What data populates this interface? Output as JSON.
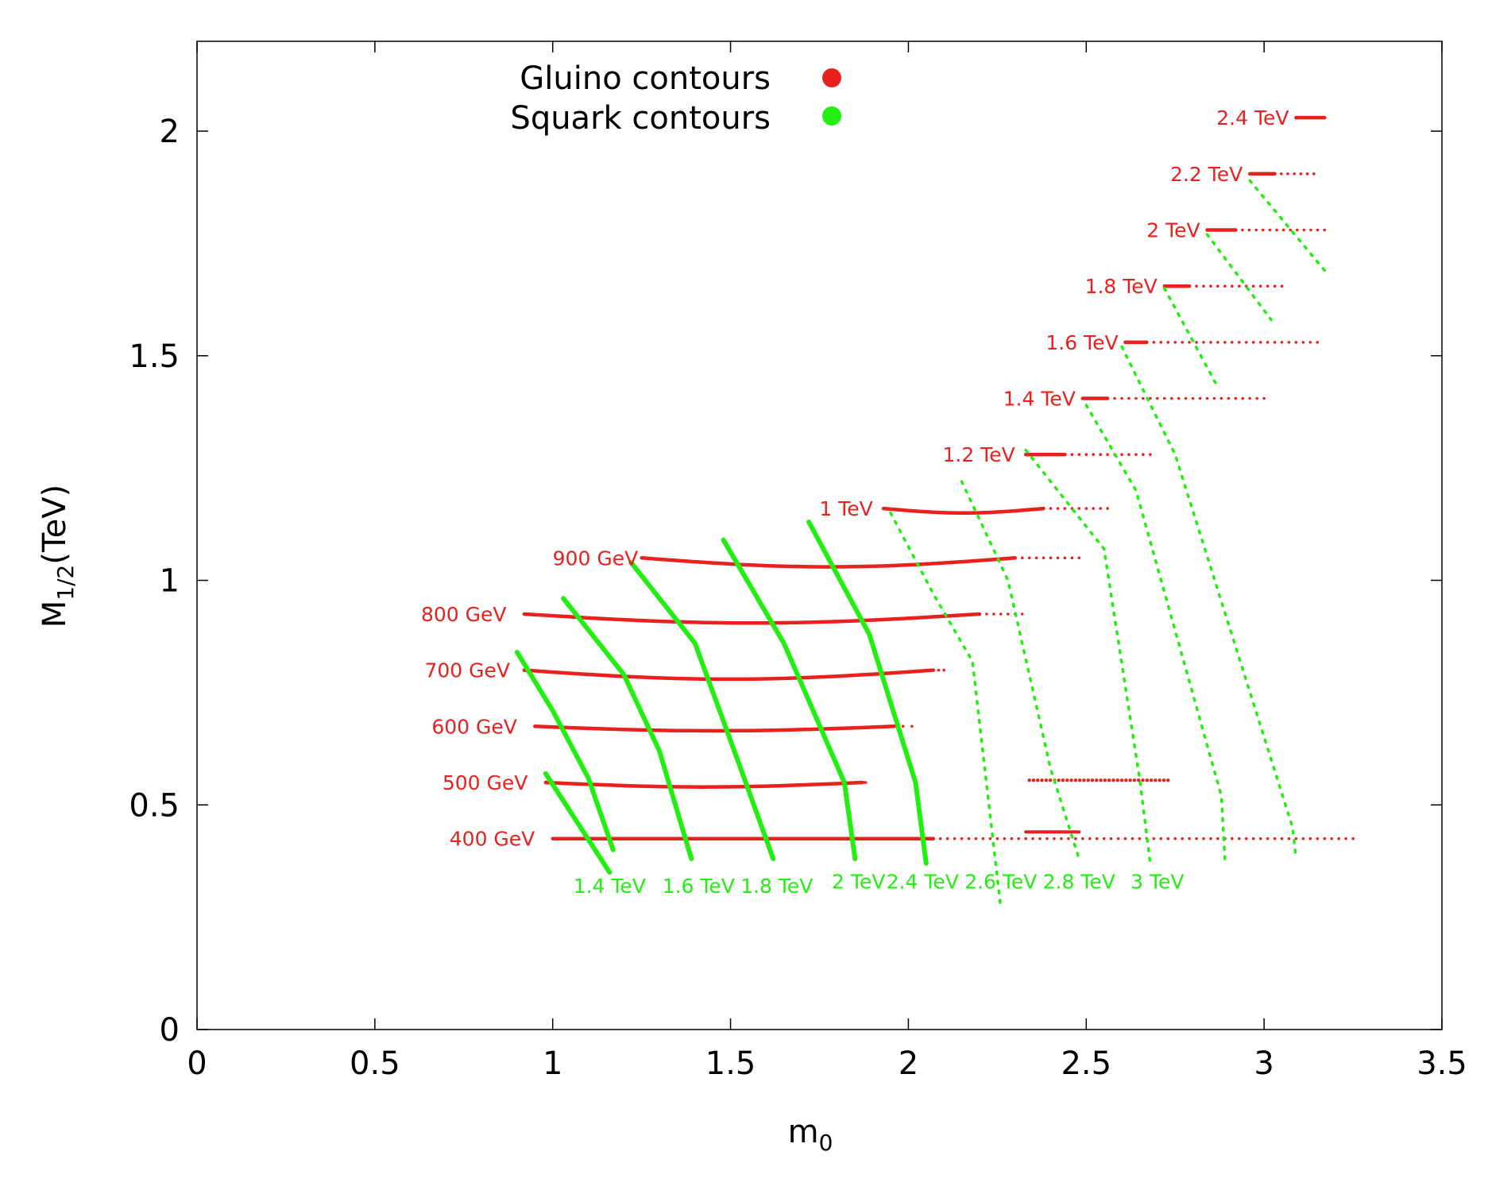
{
  "chart_data": {
    "type": "scatter",
    "title": "",
    "xlabel": "m",
    "xlabel_sub": "0",
    "ylabel": "M",
    "ylabel_sub": "1/2",
    "ylabel_suffix": "(TeV)",
    "xlim": [
      0,
      3.5
    ],
    "ylim": [
      0,
      2.2
    ],
    "xticks": [
      {
        "v": 0,
        "label": "0"
      },
      {
        "v": 0.5,
        "label": "0.5"
      },
      {
        "v": 1,
        "label": "1"
      },
      {
        "v": 1.5,
        "label": "1.5"
      },
      {
        "v": 2,
        "label": "2"
      },
      {
        "v": 2.5,
        "label": "2.5"
      },
      {
        "v": 3,
        "label": "3"
      },
      {
        "v": 3.5,
        "label": "3.5"
      }
    ],
    "yticks": [
      {
        "v": 0,
        "label": "0"
      },
      {
        "v": 0.5,
        "label": "0.5"
      },
      {
        "v": 1,
        "label": "1"
      },
      {
        "v": 1.5,
        "label": "1.5"
      },
      {
        "v": 2,
        "label": "2"
      }
    ],
    "grid": false,
    "legend_position": "top-center",
    "colors": {
      "gluino": "#e8201e",
      "squark": "#22ee11"
    },
    "series": [
      {
        "name": "Gluino contours",
        "color": "#e8201e",
        "contours": [
          {
            "label": "400 GeV",
            "y": 0.425,
            "x_start": 1.0,
            "x_dense_end": 2.07,
            "x_sparse_end": 3.25,
            "sag": 0.0,
            "label_x": 0.95,
            "extra_segments": [
              {
                "x_start": 2.33,
                "x_end": 2.48,
                "y": 0.44
              }
            ]
          },
          {
            "label": "500 GeV",
            "y": 0.55,
            "x_start": 0.98,
            "x_dense_end": 1.87,
            "x_sparse_end": 1.88,
            "sag": 0.01,
            "label_x": 0.93,
            "extra_segments": [
              {
                "x_start": 2.34,
                "x_end": 2.73,
                "y": 0.555,
                "sparse": true
              }
            ]
          },
          {
            "label": "600 GeV",
            "y": 0.675,
            "x_start": 0.95,
            "x_dense_end": 1.96,
            "x_sparse_end": 2.01,
            "sag": 0.01,
            "label_x": 0.9
          },
          {
            "label": "700 GeV",
            "y": 0.8,
            "x_start": 0.92,
            "x_dense_end": 2.07,
            "x_sparse_end": 2.1,
            "sag": 0.02,
            "label_x": 0.88
          },
          {
            "label": "800 GeV",
            "y": 0.925,
            "x_start": 0.92,
            "x_dense_end": 2.2,
            "x_sparse_end": 2.32,
            "sag": 0.02,
            "label_x": 0.87
          },
          {
            "label": "900 GeV",
            "y": 1.05,
            "x_start": 1.25,
            "x_dense_end": 2.3,
            "x_sparse_end": 2.48,
            "sag": 0.02,
            "label_x": 1.24
          },
          {
            "label": "1 TeV",
            "y": 1.16,
            "x_start": 1.93,
            "x_dense_end": 2.38,
            "x_sparse_end": 2.56,
            "sag": 0.01,
            "label_x": 1.9
          },
          {
            "label": "1.2 TeV",
            "y": 1.28,
            "x_start": 2.33,
            "x_dense_end": 2.44,
            "x_sparse_end": 2.68,
            "sag": 0.0,
            "label_x": 2.3
          },
          {
            "label": "1.4 TeV",
            "y": 1.405,
            "x_start": 2.49,
            "x_dense_end": 2.56,
            "x_sparse_end": 3.0,
            "sag": 0.0,
            "label_x": 2.47
          },
          {
            "label": "1.6 TeV",
            "y": 1.53,
            "x_start": 2.61,
            "x_dense_end": 2.67,
            "x_sparse_end": 3.15,
            "sag": 0.0,
            "label_x": 2.59
          },
          {
            "label": "1.8 TeV",
            "y": 1.655,
            "x_start": 2.72,
            "x_dense_end": 2.79,
            "x_sparse_end": 3.05,
            "sag": 0.0,
            "label_x": 2.7
          },
          {
            "label": "2 TeV",
            "y": 1.78,
            "x_start": 2.84,
            "x_dense_end": 2.92,
            "x_sparse_end": 3.17,
            "sag": 0.0,
            "label_x": 2.82
          },
          {
            "label": "2.2 TeV",
            "y": 1.905,
            "x_start": 2.96,
            "x_dense_end": 3.03,
            "x_sparse_end": 3.14,
            "sag": 0.0,
            "label_x": 2.94
          },
          {
            "label": "2.4 TeV",
            "y": 2.03,
            "x_start": 3.09,
            "x_dense_end": 3.17,
            "x_sparse_end": 3.17,
            "sag": 0.0,
            "label_x": 3.07
          }
        ]
      },
      {
        "name": "Squark contours",
        "color": "#22ee11",
        "contours": [
          {
            "label": "1.4 TeV",
            "points": [
              [
                0.9,
                0.84
              ],
              [
                1.0,
                0.71
              ],
              [
                1.1,
                0.56
              ],
              [
                1.17,
                0.4
              ]
            ],
            "dense": true
          },
          {
            "label": "1.4 TeV",
            "points": [
              [
                0.98,
                0.57
              ],
              [
                1.07,
                0.46
              ],
              [
                1.16,
                0.35
              ]
            ],
            "dense": true,
            "label_at": [
              1.16,
              0.32
            ]
          },
          {
            "label": "1.6 TeV",
            "points": [
              [
                1.03,
                0.96
              ],
              [
                1.2,
                0.79
              ],
              [
                1.3,
                0.62
              ],
              [
                1.39,
                0.38
              ]
            ],
            "dense": true,
            "label_at": [
              1.41,
              0.32
            ]
          },
          {
            "label": "1.8 TeV",
            "points": [
              [
                1.22,
                1.04
              ],
              [
                1.4,
                0.86
              ],
              [
                1.52,
                0.6
              ],
              [
                1.62,
                0.38
              ]
            ],
            "dense": true,
            "label_at": [
              1.63,
              0.32
            ]
          },
          {
            "label": "2 TeV",
            "points": [
              [
                1.48,
                1.09
              ],
              [
                1.65,
                0.86
              ],
              [
                1.82,
                0.55
              ],
              [
                1.85,
                0.38
              ]
            ],
            "dense": true,
            "label_at": [
              1.86,
              0.33
            ]
          },
          {
            "label": "2.4 TeV",
            "points": [
              [
                1.72,
                1.13
              ],
              [
                1.89,
                0.88
              ],
              [
                2.02,
                0.55
              ],
              [
                2.05,
                0.37
              ]
            ],
            "dense": true,
            "label_at": [
              2.04,
              0.33
            ]
          },
          {
            "label": "2.6 TeV",
            "points": [
              [
                1.95,
                1.15
              ],
              [
                2.07,
                0.97
              ],
              [
                2.18,
                0.82
              ],
              [
                2.26,
                0.27
              ]
            ],
            "dense": false,
            "label_at": [
              2.26,
              0.33
            ]
          },
          {
            "label": "2.8 TeV",
            "points": [
              [
                2.15,
                1.22
              ],
              [
                2.28,
                1.0
              ],
              [
                2.4,
                0.58
              ],
              [
                2.48,
                0.38
              ]
            ],
            "dense": false,
            "label_at": [
              2.48,
              0.33
            ]
          },
          {
            "label": "3 TeV",
            "points": [
              [
                2.33,
                1.29
              ],
              [
                2.55,
                1.07
              ],
              [
                2.65,
                0.56
              ],
              [
                2.68,
                0.37
              ]
            ],
            "dense": false,
            "label_at": [
              2.7,
              0.33
            ]
          },
          {
            "label": "",
            "points": [
              [
                2.5,
                1.39
              ],
              [
                2.64,
                1.2
              ],
              [
                2.88,
                0.52
              ],
              [
                2.89,
                0.38
              ]
            ],
            "dense": false
          },
          {
            "label": "",
            "points": [
              [
                2.6,
                1.52
              ],
              [
                2.75,
                1.28
              ],
              [
                3.08,
                0.45
              ],
              [
                3.09,
                0.38
              ]
            ],
            "dense": false
          },
          {
            "label": "",
            "points": [
              [
                2.72,
                1.65
              ],
              [
                2.87,
                1.43
              ]
            ],
            "dense": false
          },
          {
            "label": "",
            "points": [
              [
                2.84,
                1.77
              ],
              [
                3.02,
                1.58
              ]
            ],
            "dense": false
          },
          {
            "label": "",
            "points": [
              [
                2.96,
                1.89
              ],
              [
                3.17,
                1.69
              ]
            ],
            "dense": false
          }
        ]
      }
    ],
    "legend": [
      {
        "label": "Gluino contours",
        "color": "#e8201e"
      },
      {
        "label": "Squark contours",
        "color": "#22ee11"
      }
    ]
  }
}
